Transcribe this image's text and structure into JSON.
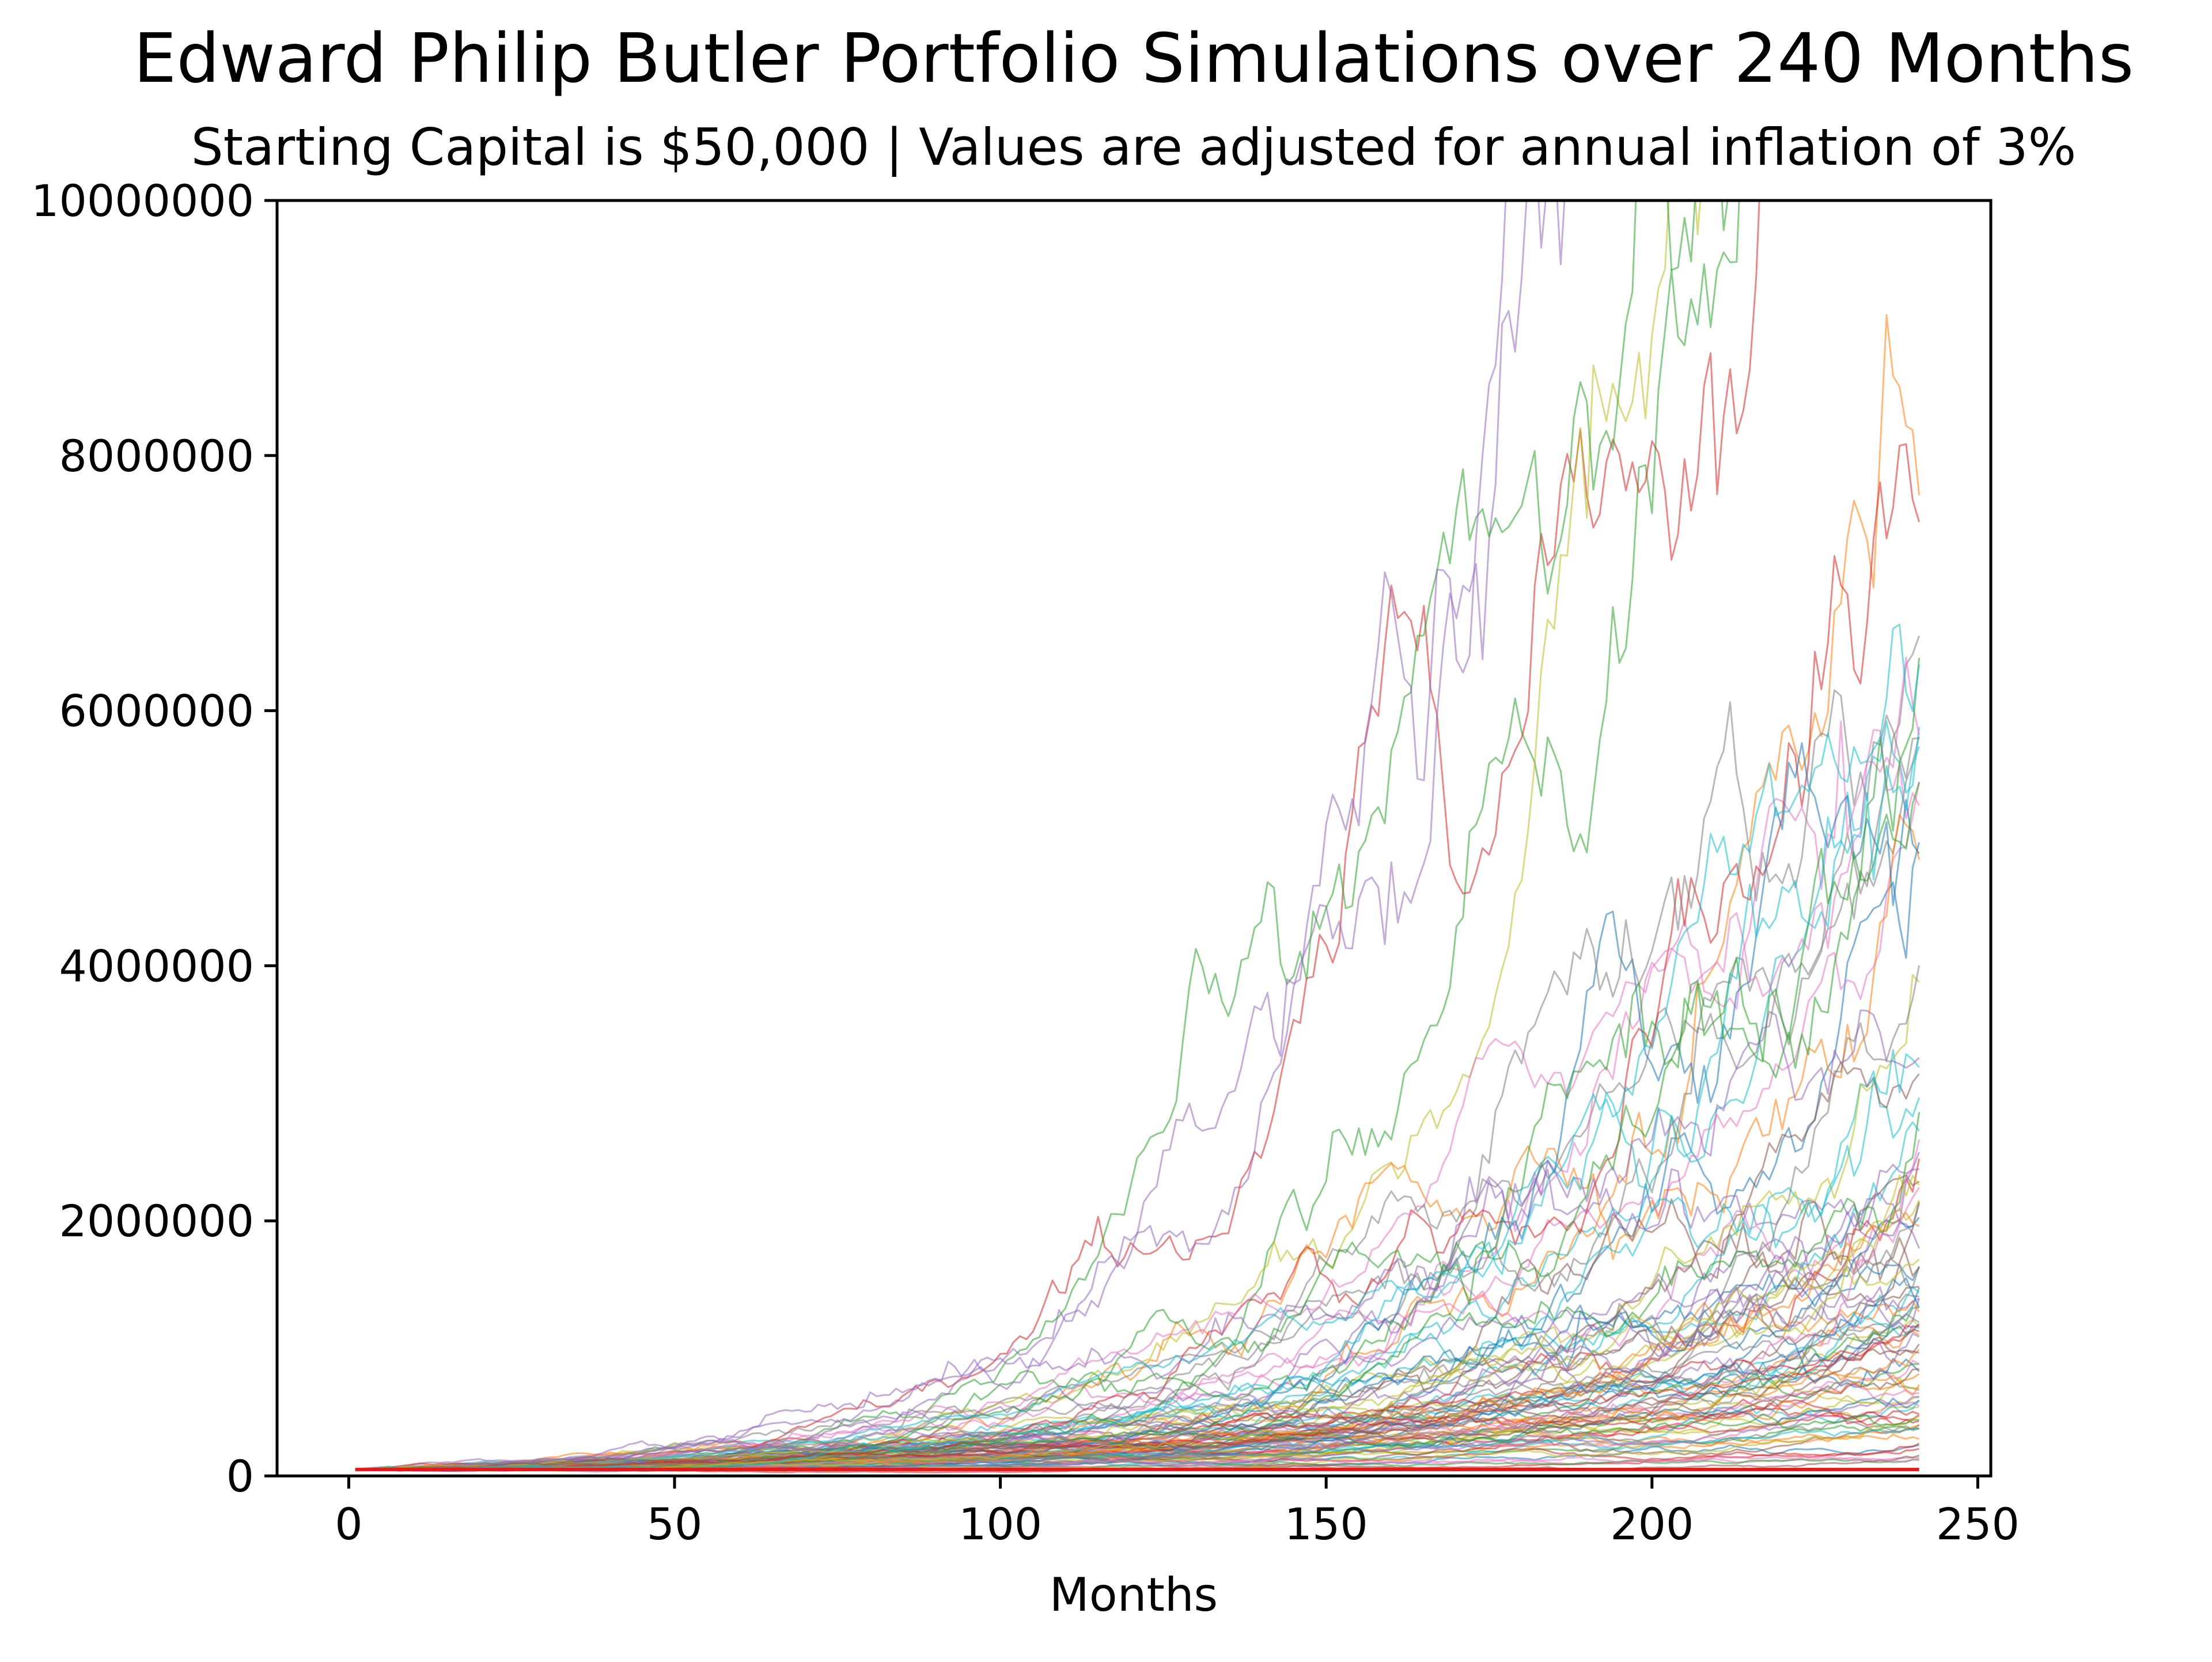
{
  "chart_data": {
    "type": "line",
    "title": "Edward Philip Butler Portfolio Simulations over 240 Months",
    "subtitle": "Starting Capital is $50,000 | Values are adjusted for annual inflation of 3%",
    "xlabel": "Months",
    "ylabel": "",
    "xlim": [
      -11,
      252
    ],
    "ylim": [
      0,
      10000000
    ],
    "x_ticks": [
      0,
      50,
      100,
      150,
      200,
      250
    ],
    "y_ticks": [
      0,
      2000000,
      4000000,
      6000000,
      8000000,
      10000000
    ],
    "grid": false,
    "legend": "none",
    "n_simulations": 100,
    "months": 240,
    "start_value": 50000,
    "simulation_final_values_sample": [
      9250000,
      8950000,
      8300000,
      7800000,
      7000000,
      6650000,
      6300000,
      5850000,
      5550000,
      5000000,
      4800000,
      4300000,
      3900000,
      3400000,
      3100000,
      2700000,
      2400000,
      2000000,
      1800000,
      1300000,
      1100000,
      900000,
      650000,
      420000
    ],
    "reference_line": {
      "name": "",
      "y": 50000,
      "color": "#e31a1c"
    },
    "series_colors": [
      "#1f77b4",
      "#ff7f0e",
      "#2ca02c",
      "#d62728",
      "#9467bd",
      "#8c564b",
      "#e377c2",
      "#7f7f7f",
      "#bcbd22",
      "#17becf"
    ]
  }
}
